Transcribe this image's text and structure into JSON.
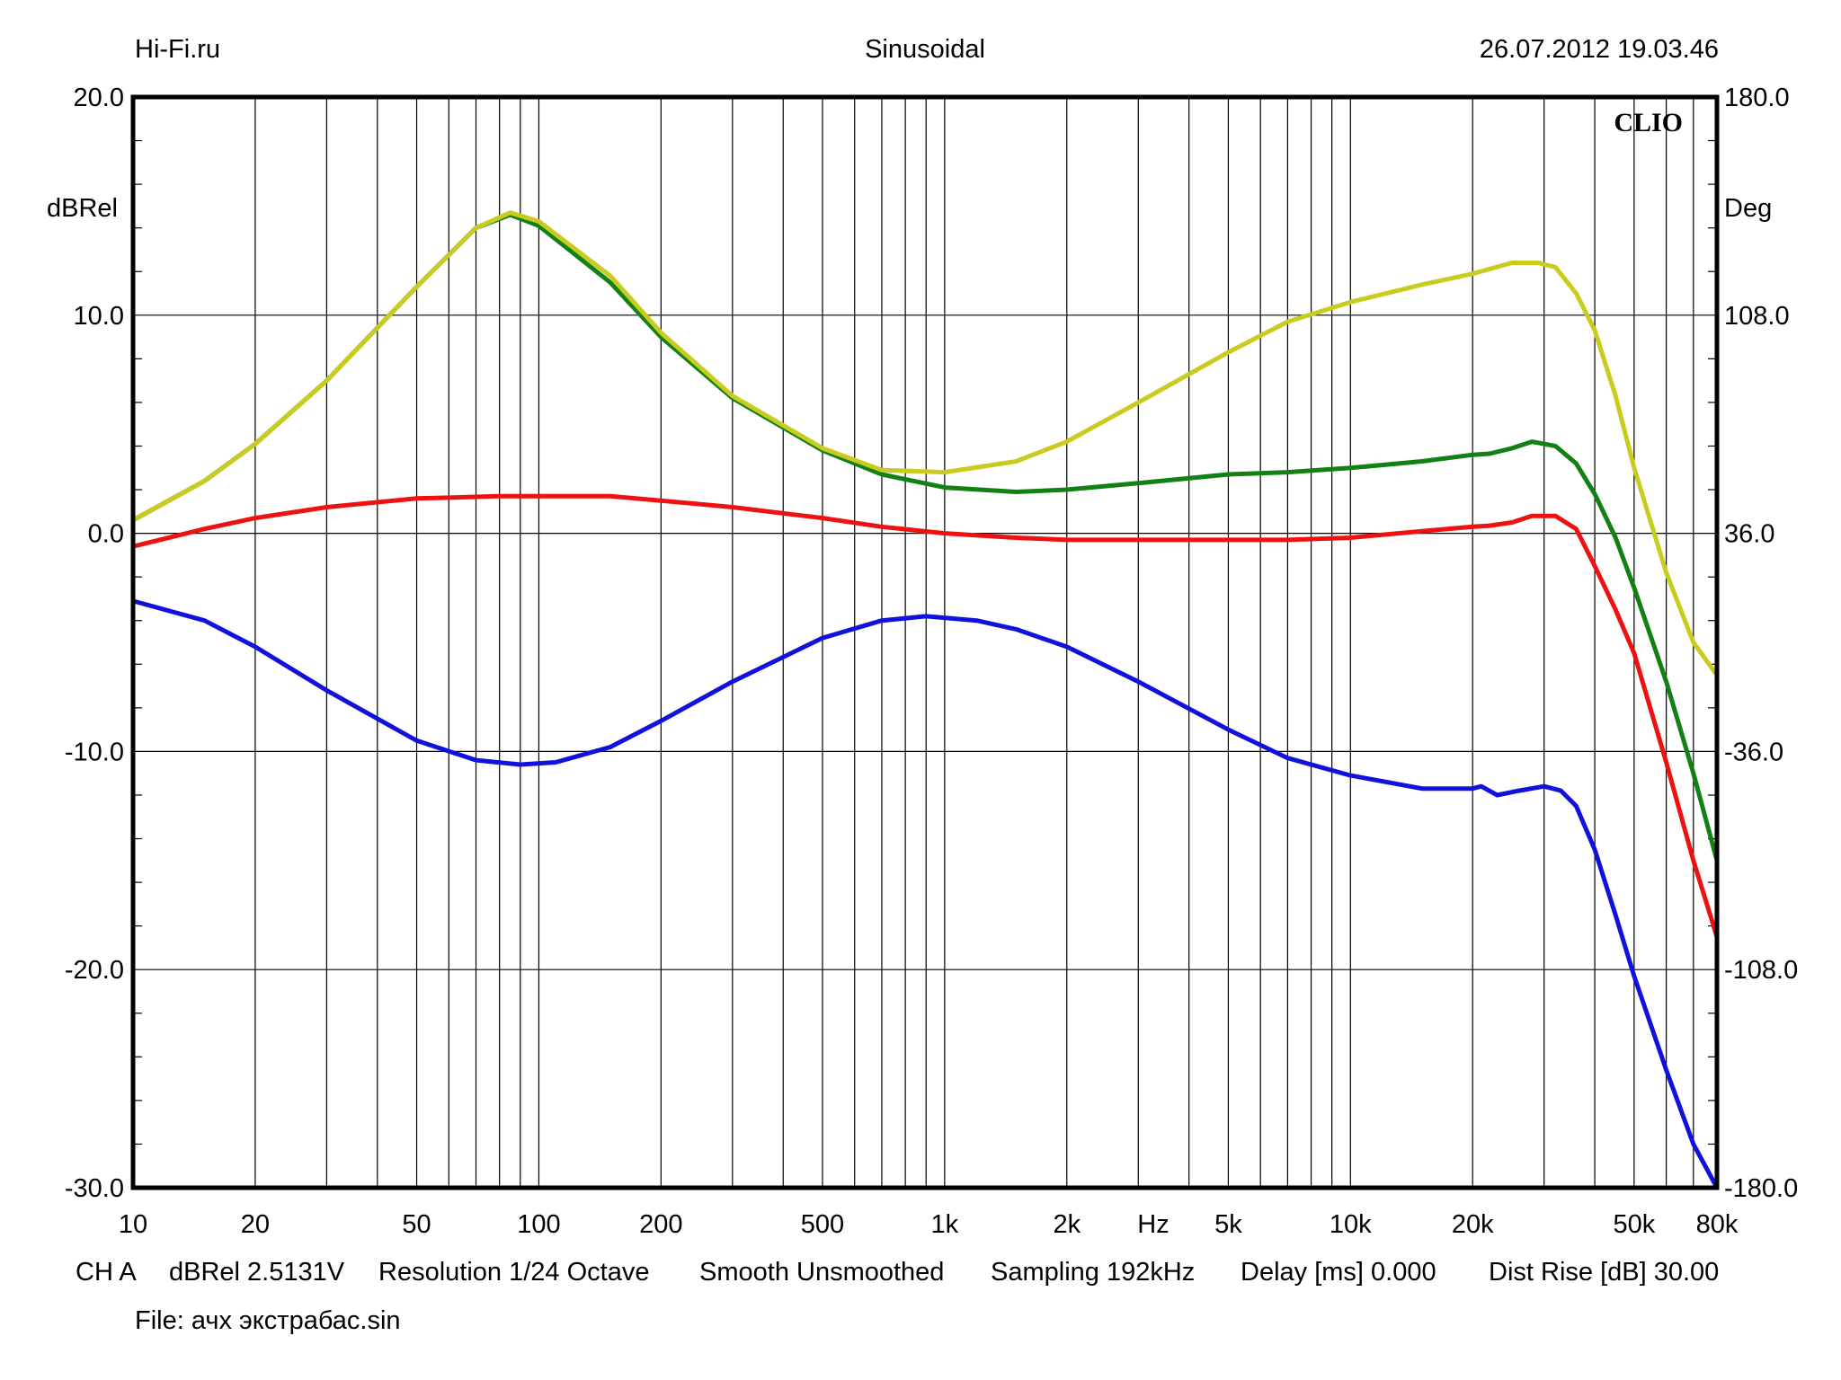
{
  "header": {
    "left": "Hi-Fi.ru",
    "center": "Sinusoidal",
    "right": "26.07.2012 19.03.46"
  },
  "footer": {
    "channel": "CH A",
    "units": "dBRel 2.5131V",
    "resolution": "Resolution 1/24 Octave",
    "smooth": "Smooth Unsmoothed",
    "sampling": "Sampling 192kHz",
    "delay": "Delay [ms] 0.000",
    "dist_rise": "Dist Rise [dB] 30.00",
    "file": "File: ачх экстрабас.sin"
  },
  "watermark": "CLIO",
  "colors": {
    "red": "#ee1111",
    "green": "#128012",
    "yellow": "#c9cc1e",
    "blue": "#1111dd"
  },
  "chart_data": {
    "type": "line",
    "x_scale": "log",
    "xlim": [
      10,
      80000
    ],
    "ylim": [
      -30,
      20
    ],
    "y2lim": [
      -180,
      180
    ],
    "ylabel": "dBRel",
    "y2label": "Deg",
    "xunit_label": "Hz",
    "grid": true,
    "x_tick_labels": [
      {
        "value": 10,
        "label": "10"
      },
      {
        "value": 20,
        "label": "20"
      },
      {
        "value": 50,
        "label": "50"
      },
      {
        "value": 100,
        "label": "100"
      },
      {
        "value": 200,
        "label": "200"
      },
      {
        "value": 500,
        "label": "500"
      },
      {
        "value": 1000,
        "label": "1k"
      },
      {
        "value": 2000,
        "label": "2k"
      },
      {
        "value": 5000,
        "label": "5k"
      },
      {
        "value": 10000,
        "label": "10k"
      },
      {
        "value": 20000,
        "label": "20k"
      },
      {
        "value": 50000,
        "label": "50k"
      },
      {
        "value": 80000,
        "label": "80k"
      }
    ],
    "y_tick_labels": [
      {
        "value": 20,
        "label": "20.0"
      },
      {
        "value": 10,
        "label": "10.0"
      },
      {
        "value": 0,
        "label": "0.0"
      },
      {
        "value": -10,
        "label": "-10.0"
      },
      {
        "value": -20,
        "label": "-20.0"
      },
      {
        "value": -30,
        "label": "-30.0"
      }
    ],
    "y2_tick_labels": [
      {
        "value": 180,
        "label": "180.0"
      },
      {
        "value": 108,
        "label": "108.0"
      },
      {
        "value": 36,
        "label": "36.0"
      },
      {
        "value": -36,
        "label": "-36.0"
      },
      {
        "value": -108,
        "label": "-108.0"
      },
      {
        "value": -180,
        "label": "-180.0"
      }
    ],
    "series": [
      {
        "color": "red",
        "points": [
          [
            10,
            -0.6
          ],
          [
            15,
            0.2
          ],
          [
            20,
            0.7
          ],
          [
            30,
            1.2
          ],
          [
            50,
            1.6
          ],
          [
            80,
            1.7
          ],
          [
            100,
            1.7
          ],
          [
            150,
            1.7
          ],
          [
            200,
            1.5
          ],
          [
            300,
            1.2
          ],
          [
            500,
            0.7
          ],
          [
            700,
            0.3
          ],
          [
            1000,
            0.0
          ],
          [
            1500,
            -0.2
          ],
          [
            2000,
            -0.3
          ],
          [
            3000,
            -0.3
          ],
          [
            5000,
            -0.3
          ],
          [
            7000,
            -0.3
          ],
          [
            10000,
            -0.2
          ],
          [
            15000,
            0.1
          ],
          [
            20000,
            0.3
          ],
          [
            22000,
            0.35
          ],
          [
            25000,
            0.5
          ],
          [
            28000,
            0.8
          ],
          [
            32000,
            0.8
          ],
          [
            36000,
            0.2
          ],
          [
            40000,
            -1.5
          ],
          [
            45000,
            -3.5
          ],
          [
            50000,
            -5.5
          ],
          [
            60000,
            -10.5
          ],
          [
            70000,
            -15.0
          ],
          [
            80000,
            -18.5
          ]
        ]
      },
      {
        "color": "green",
        "points": [
          [
            10,
            0.6
          ],
          [
            15,
            2.4
          ],
          [
            20,
            4.1
          ],
          [
            30,
            7.0
          ],
          [
            50,
            11.3
          ],
          [
            70,
            14.0
          ],
          [
            85,
            14.6
          ],
          [
            100,
            14.1
          ],
          [
            150,
            11.5
          ],
          [
            200,
            9.0
          ],
          [
            300,
            6.2
          ],
          [
            500,
            3.8
          ],
          [
            700,
            2.7
          ],
          [
            1000,
            2.1
          ],
          [
            1500,
            1.9
          ],
          [
            2000,
            2.0
          ],
          [
            3000,
            2.3
          ],
          [
            5000,
            2.7
          ],
          [
            7000,
            2.8
          ],
          [
            10000,
            3.0
          ],
          [
            15000,
            3.3
          ],
          [
            20000,
            3.6
          ],
          [
            22000,
            3.65
          ],
          [
            25000,
            3.9
          ],
          [
            28000,
            4.2
          ],
          [
            32000,
            4.0
          ],
          [
            36000,
            3.2
          ],
          [
            40000,
            1.8
          ],
          [
            45000,
            -0.2
          ],
          [
            50000,
            -2.5
          ],
          [
            60000,
            -6.8
          ],
          [
            70000,
            -11.0
          ],
          [
            80000,
            -15.0
          ]
        ]
      },
      {
        "color": "yellow",
        "points": [
          [
            10,
            0.6
          ],
          [
            15,
            2.4
          ],
          [
            20,
            4.1
          ],
          [
            30,
            7.0
          ],
          [
            50,
            11.3
          ],
          [
            70,
            14.0
          ],
          [
            85,
            14.7
          ],
          [
            100,
            14.3
          ],
          [
            150,
            11.8
          ],
          [
            200,
            9.2
          ],
          [
            300,
            6.3
          ],
          [
            500,
            3.9
          ],
          [
            700,
            2.9
          ],
          [
            1000,
            2.8
          ],
          [
            1500,
            3.3
          ],
          [
            2000,
            4.2
          ],
          [
            3000,
            6.0
          ],
          [
            5000,
            8.3
          ],
          [
            7000,
            9.7
          ],
          [
            10000,
            10.6
          ],
          [
            15000,
            11.4
          ],
          [
            20000,
            11.9
          ],
          [
            25000,
            12.4
          ],
          [
            27000,
            12.4
          ],
          [
            29000,
            12.4
          ],
          [
            32000,
            12.2
          ],
          [
            36000,
            11.0
          ],
          [
            40000,
            9.3
          ],
          [
            45000,
            6.3
          ],
          [
            50000,
            3.0
          ],
          [
            60000,
            -1.8
          ],
          [
            70000,
            -5.0
          ],
          [
            80000,
            -6.5
          ]
        ]
      },
      {
        "color": "blue",
        "points": [
          [
            10,
            -3.1
          ],
          [
            15,
            -4.0
          ],
          [
            20,
            -5.2
          ],
          [
            30,
            -7.2
          ],
          [
            50,
            -9.5
          ],
          [
            70,
            -10.4
          ],
          [
            90,
            -10.6
          ],
          [
            110,
            -10.5
          ],
          [
            150,
            -9.8
          ],
          [
            200,
            -8.6
          ],
          [
            300,
            -6.8
          ],
          [
            500,
            -4.8
          ],
          [
            700,
            -4.0
          ],
          [
            900,
            -3.8
          ],
          [
            1200,
            -4.0
          ],
          [
            1500,
            -4.4
          ],
          [
            2000,
            -5.2
          ],
          [
            3000,
            -6.8
          ],
          [
            5000,
            -9.0
          ],
          [
            7000,
            -10.3
          ],
          [
            10000,
            -11.1
          ],
          [
            15000,
            -11.7
          ],
          [
            20000,
            -11.7
          ],
          [
            21000,
            -11.6
          ],
          [
            23000,
            -12.0
          ],
          [
            26000,
            -11.8
          ],
          [
            30000,
            -11.6
          ],
          [
            33000,
            -11.8
          ],
          [
            36000,
            -12.5
          ],
          [
            40000,
            -14.5
          ],
          [
            45000,
            -17.5
          ],
          [
            50000,
            -20.3
          ],
          [
            60000,
            -24.6
          ],
          [
            70000,
            -28.0
          ],
          [
            80000,
            -30.0
          ]
        ]
      }
    ]
  }
}
